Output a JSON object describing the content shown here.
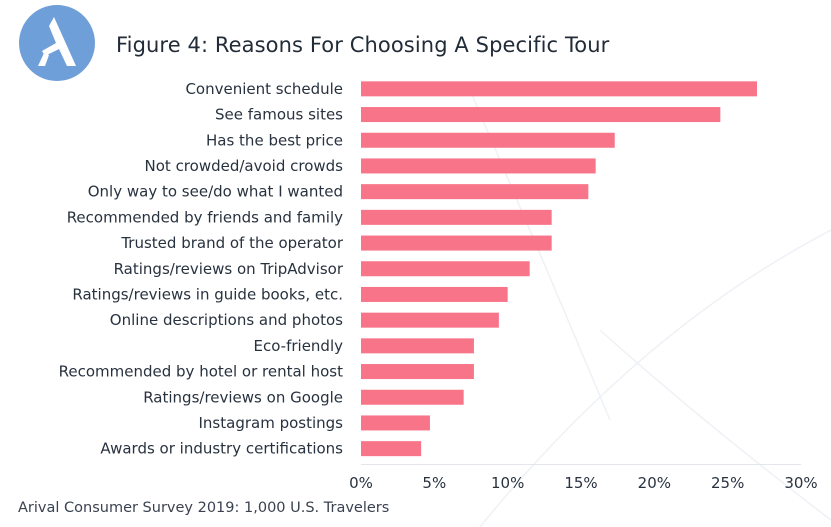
{
  "header": {
    "title": "Figure 4: Reasons For Choosing A Specific Tour",
    "logo_icon": "arival-logo-icon",
    "brand_color": "#6f9fd8"
  },
  "chart_data": {
    "type": "bar",
    "orientation": "horizontal",
    "title": "Figure 4: Reasons For Choosing A Specific Tour",
    "xlabel": "",
    "ylabel": "",
    "categories": [
      "Convenient schedule",
      "See famous sites",
      "Has the best price",
      "Not crowded/avoid crowds",
      "Only way to see/do what I wanted",
      "Recommended by friends and family",
      "Trusted brand of the operator",
      "Ratings/reviews on TripAdvisor",
      "Ratings/reviews in guide books, etc.",
      "Online descriptions and photos",
      "Eco-friendly",
      "Recommended by hotel or rental host",
      "Ratings/reviews on Google",
      "Instagram postings",
      "Awards or industry certifications"
    ],
    "values": [
      27.0,
      24.5,
      17.3,
      16.0,
      15.5,
      13.0,
      13.0,
      11.5,
      10.0,
      9.4,
      7.7,
      7.7,
      7.0,
      4.7,
      4.1
    ],
    "xlim": [
      0,
      30
    ],
    "xticks": [
      "0%",
      "5%",
      "10%",
      "15%",
      "20%",
      "25%",
      "30%"
    ],
    "bar_color": "#f77489",
    "grid": false,
    "legend": "none"
  },
  "footer": {
    "source": "Arival Consumer Survey 2019: 1,000 U.S. Travelers"
  }
}
